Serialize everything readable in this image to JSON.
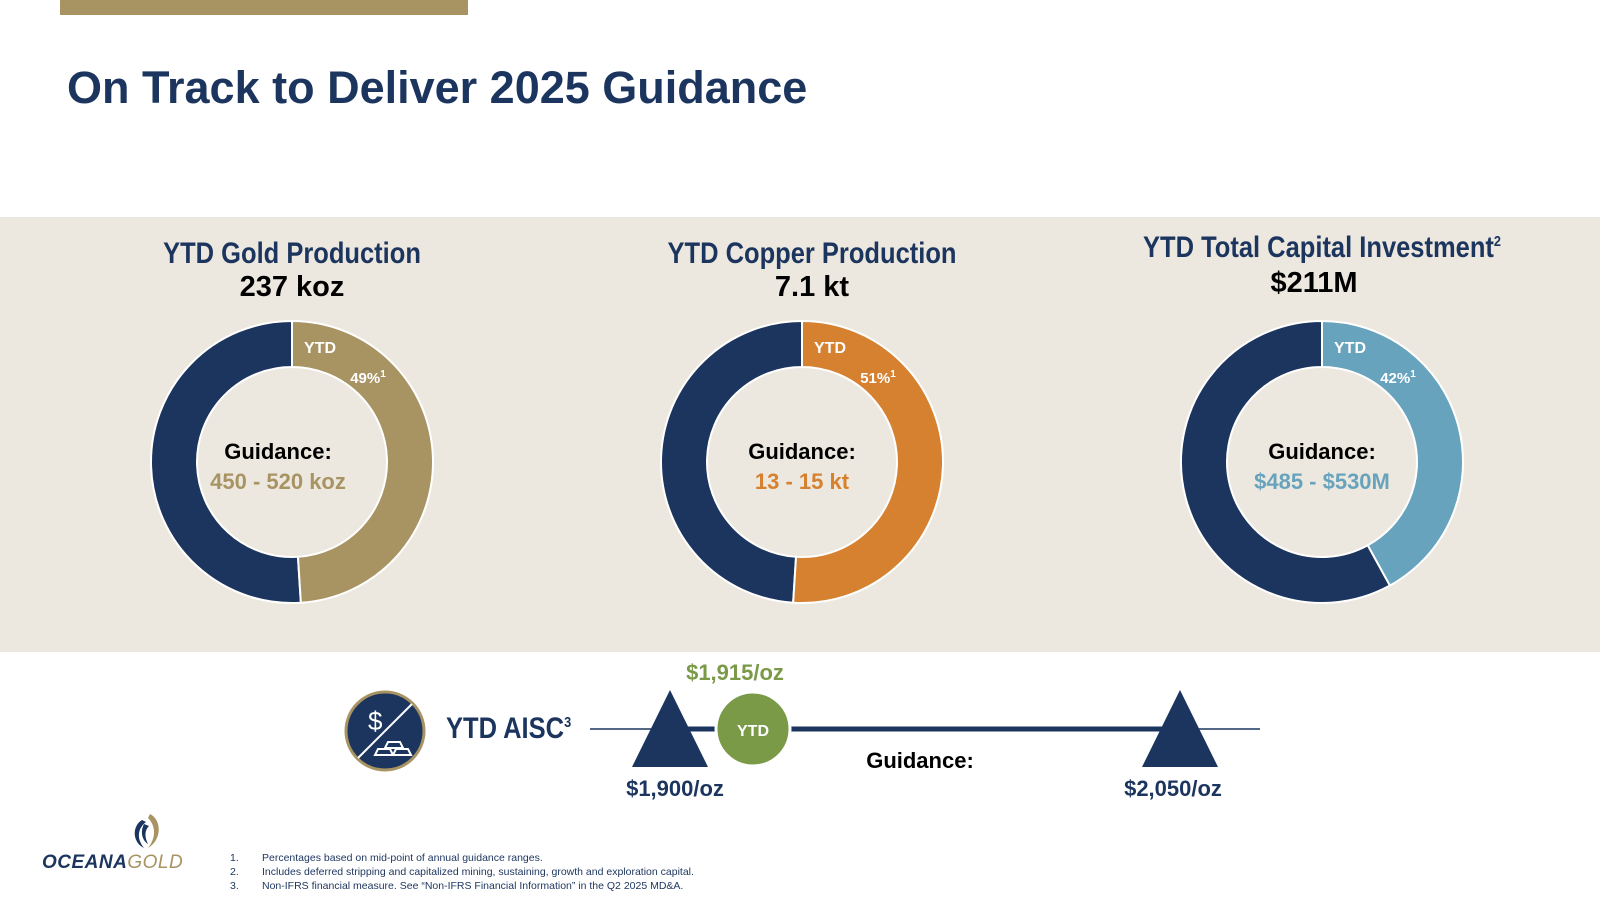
{
  "page": {
    "title": "On Track to Deliver 2025 Guidance"
  },
  "colors": {
    "navy": "#1c355e",
    "gold": "#a89363",
    "copper": "#d6812f",
    "capital": "#67a3bd",
    "aisc_green": "#7a9a48",
    "band": "#ede8df"
  },
  "panels": [
    {
      "title": "YTD Gold Production",
      "title_sup": "",
      "value": "237 koz",
      "center_label": "Guidance:",
      "center_range": "450 - 520 koz",
      "ytd_label": "YTD",
      "pct_label": "49%",
      "pct_sup": "1",
      "percent": 49,
      "color": "#a89363"
    },
    {
      "title": "YTD Copper Production",
      "title_sup": "",
      "value": "7.1 kt",
      "center_label": "Guidance:",
      "center_range": "13 - 15 kt",
      "ytd_label": "YTD",
      "pct_label": "51%",
      "pct_sup": "1",
      "percent": 51,
      "color": "#d6812f"
    },
    {
      "title": "YTD Total Capital Investment",
      "title_sup": "2",
      "value": "$211M",
      "center_label": "Guidance:",
      "center_range": "$485 - $530M",
      "ytd_label": "YTD",
      "pct_label": "42%",
      "pct_sup": "1",
      "percent": 42,
      "color": "#67a3bd"
    }
  ],
  "chart_data": [
    {
      "type": "pie",
      "title": "YTD Gold Production",
      "categories": [
        "YTD",
        "Remaining"
      ],
      "values": [
        49,
        51
      ],
      "unit": "%"
    },
    {
      "type": "pie",
      "title": "YTD Copper Production",
      "categories": [
        "YTD",
        "Remaining"
      ],
      "values": [
        51,
        49
      ],
      "unit": "%"
    },
    {
      "type": "pie",
      "title": "YTD Total Capital Investment",
      "categories": [
        "YTD",
        "Remaining"
      ],
      "values": [
        42,
        58
      ],
      "unit": "%"
    }
  ],
  "aisc": {
    "icon": "dollar-gold-bars-icon",
    "label": "YTD AISC",
    "label_sup": "3",
    "ytd_marker": "YTD",
    "ytd_value": "$1,915/oz",
    "ytd_number": 1915,
    "guidance_label": "Guidance:",
    "low": "$1,900/oz",
    "low_number": 1900,
    "high": "$2,050/oz",
    "high_number": 2050
  },
  "logo": {
    "icon": "oceanagold-wave-icon",
    "word1": "OCEANA",
    "word2": "GOLD"
  },
  "footnotes": [
    {
      "num": "1.",
      "text": "Percentages based on mid-point of annual guidance ranges."
    },
    {
      "num": "2.",
      "text": "Includes deferred stripping and capitalized mining, sustaining, growth and exploration capital."
    },
    {
      "num": "3.",
      "text": "Non-IFRS financial measure. See “Non-IFRS Financial Information” in the Q2 2025 MD&A."
    }
  ]
}
